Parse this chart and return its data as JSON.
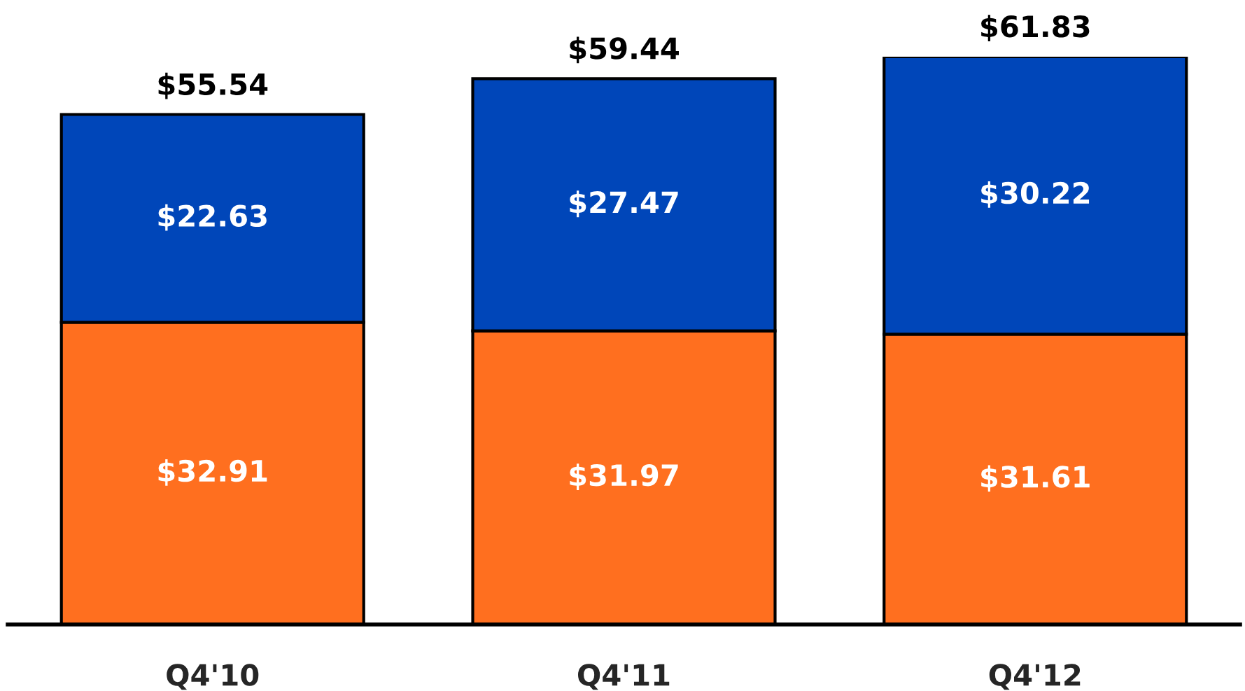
{
  "chart_data": {
    "type": "bar",
    "stacked": true,
    "categories": [
      "Q4'10",
      "Q4'11",
      "Q4'12"
    ],
    "series": [
      {
        "color": "#ff6f1f",
        "values": [
          32.91,
          31.97,
          31.61
        ],
        "value_labels": [
          "$32.91",
          "$31.97",
          "$31.61"
        ]
      },
      {
        "color": "#0046b9",
        "values": [
          22.63,
          27.47,
          30.22
        ],
        "value_labels": [
          "$22.63",
          "$27.47",
          "$30.22"
        ]
      }
    ],
    "totals": [
      "$55.54",
      "$59.44",
      "$61.83"
    ],
    "grid": false,
    "legend": false
  }
}
